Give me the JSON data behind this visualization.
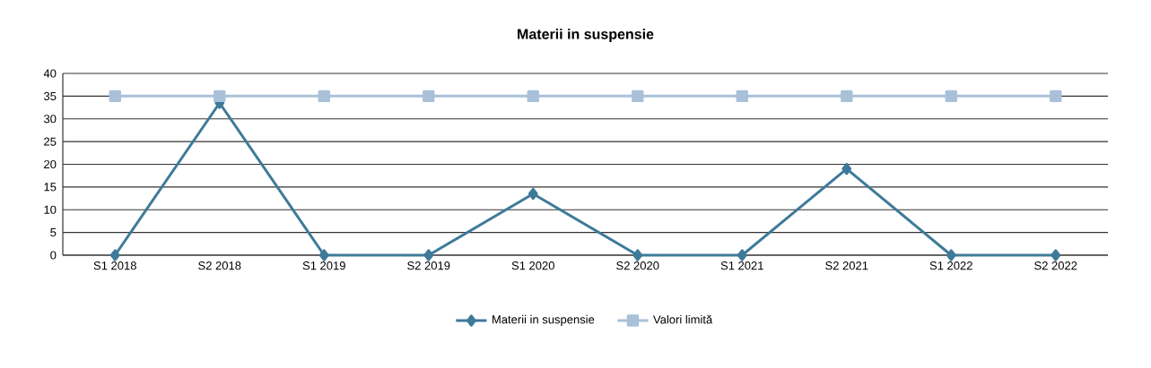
{
  "chart_data": {
    "type": "line",
    "title": "Materii in suspensie",
    "categories": [
      "S1 2018",
      "S2 2018",
      "S1 2019",
      "S2 2019",
      "S1 2020",
      "S2 2020",
      "S1 2021",
      "S2 2021",
      "S1 2022",
      "S2 2022"
    ],
    "series": [
      {
        "name": "Materii in suspensie",
        "color": "#3e7a99",
        "marker": "diamond",
        "values": [
          0,
          33.5,
          0,
          0,
          13.5,
          0,
          0,
          19,
          0,
          0
        ]
      },
      {
        "name": "Valori limită",
        "color": "#a9c0d9",
        "marker": "square",
        "values": [
          35,
          35,
          35,
          35,
          35,
          35,
          35,
          35,
          35,
          35
        ]
      }
    ],
    "ylim": [
      0,
      40
    ],
    "yticks": [
      0,
      5,
      10,
      15,
      20,
      25,
      30,
      35,
      40
    ],
    "grid": "y",
    "legend": "bottom",
    "line_style": "solid"
  }
}
